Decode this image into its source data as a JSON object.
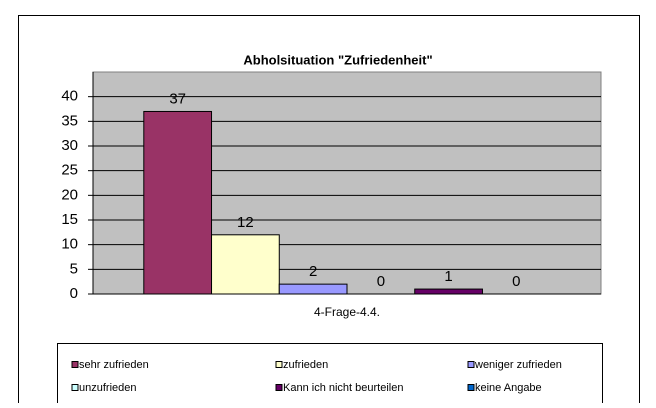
{
  "chart_data": {
    "type": "bar",
    "title": "Abholsituation \"Zufriedenheit\"",
    "categories": [
      "4-Frage-4.4."
    ],
    "series": [
      {
        "name": "sehr zufrieden",
        "color": "#993366",
        "values": [
          37
        ]
      },
      {
        "name": "zufrieden",
        "color": "#ffffcc",
        "values": [
          12
        ]
      },
      {
        "name": "weniger zufrieden",
        "color": "#9999ff",
        "values": [
          2
        ]
      },
      {
        "name": "unzufrieden",
        "color": "#ccffff",
        "values": [
          0
        ]
      },
      {
        "name": "Kann ich nicht beurteilen",
        "color": "#660066",
        "values": [
          1
        ]
      },
      {
        "name": "keine Angabe",
        "color": "#0066cc",
        "values": [
          0
        ]
      }
    ],
    "ylim": [
      0,
      45
    ],
    "yticks": [
      0,
      5,
      10,
      15,
      20,
      25,
      30,
      35,
      40
    ],
    "grid": true,
    "legend": "bottom"
  }
}
